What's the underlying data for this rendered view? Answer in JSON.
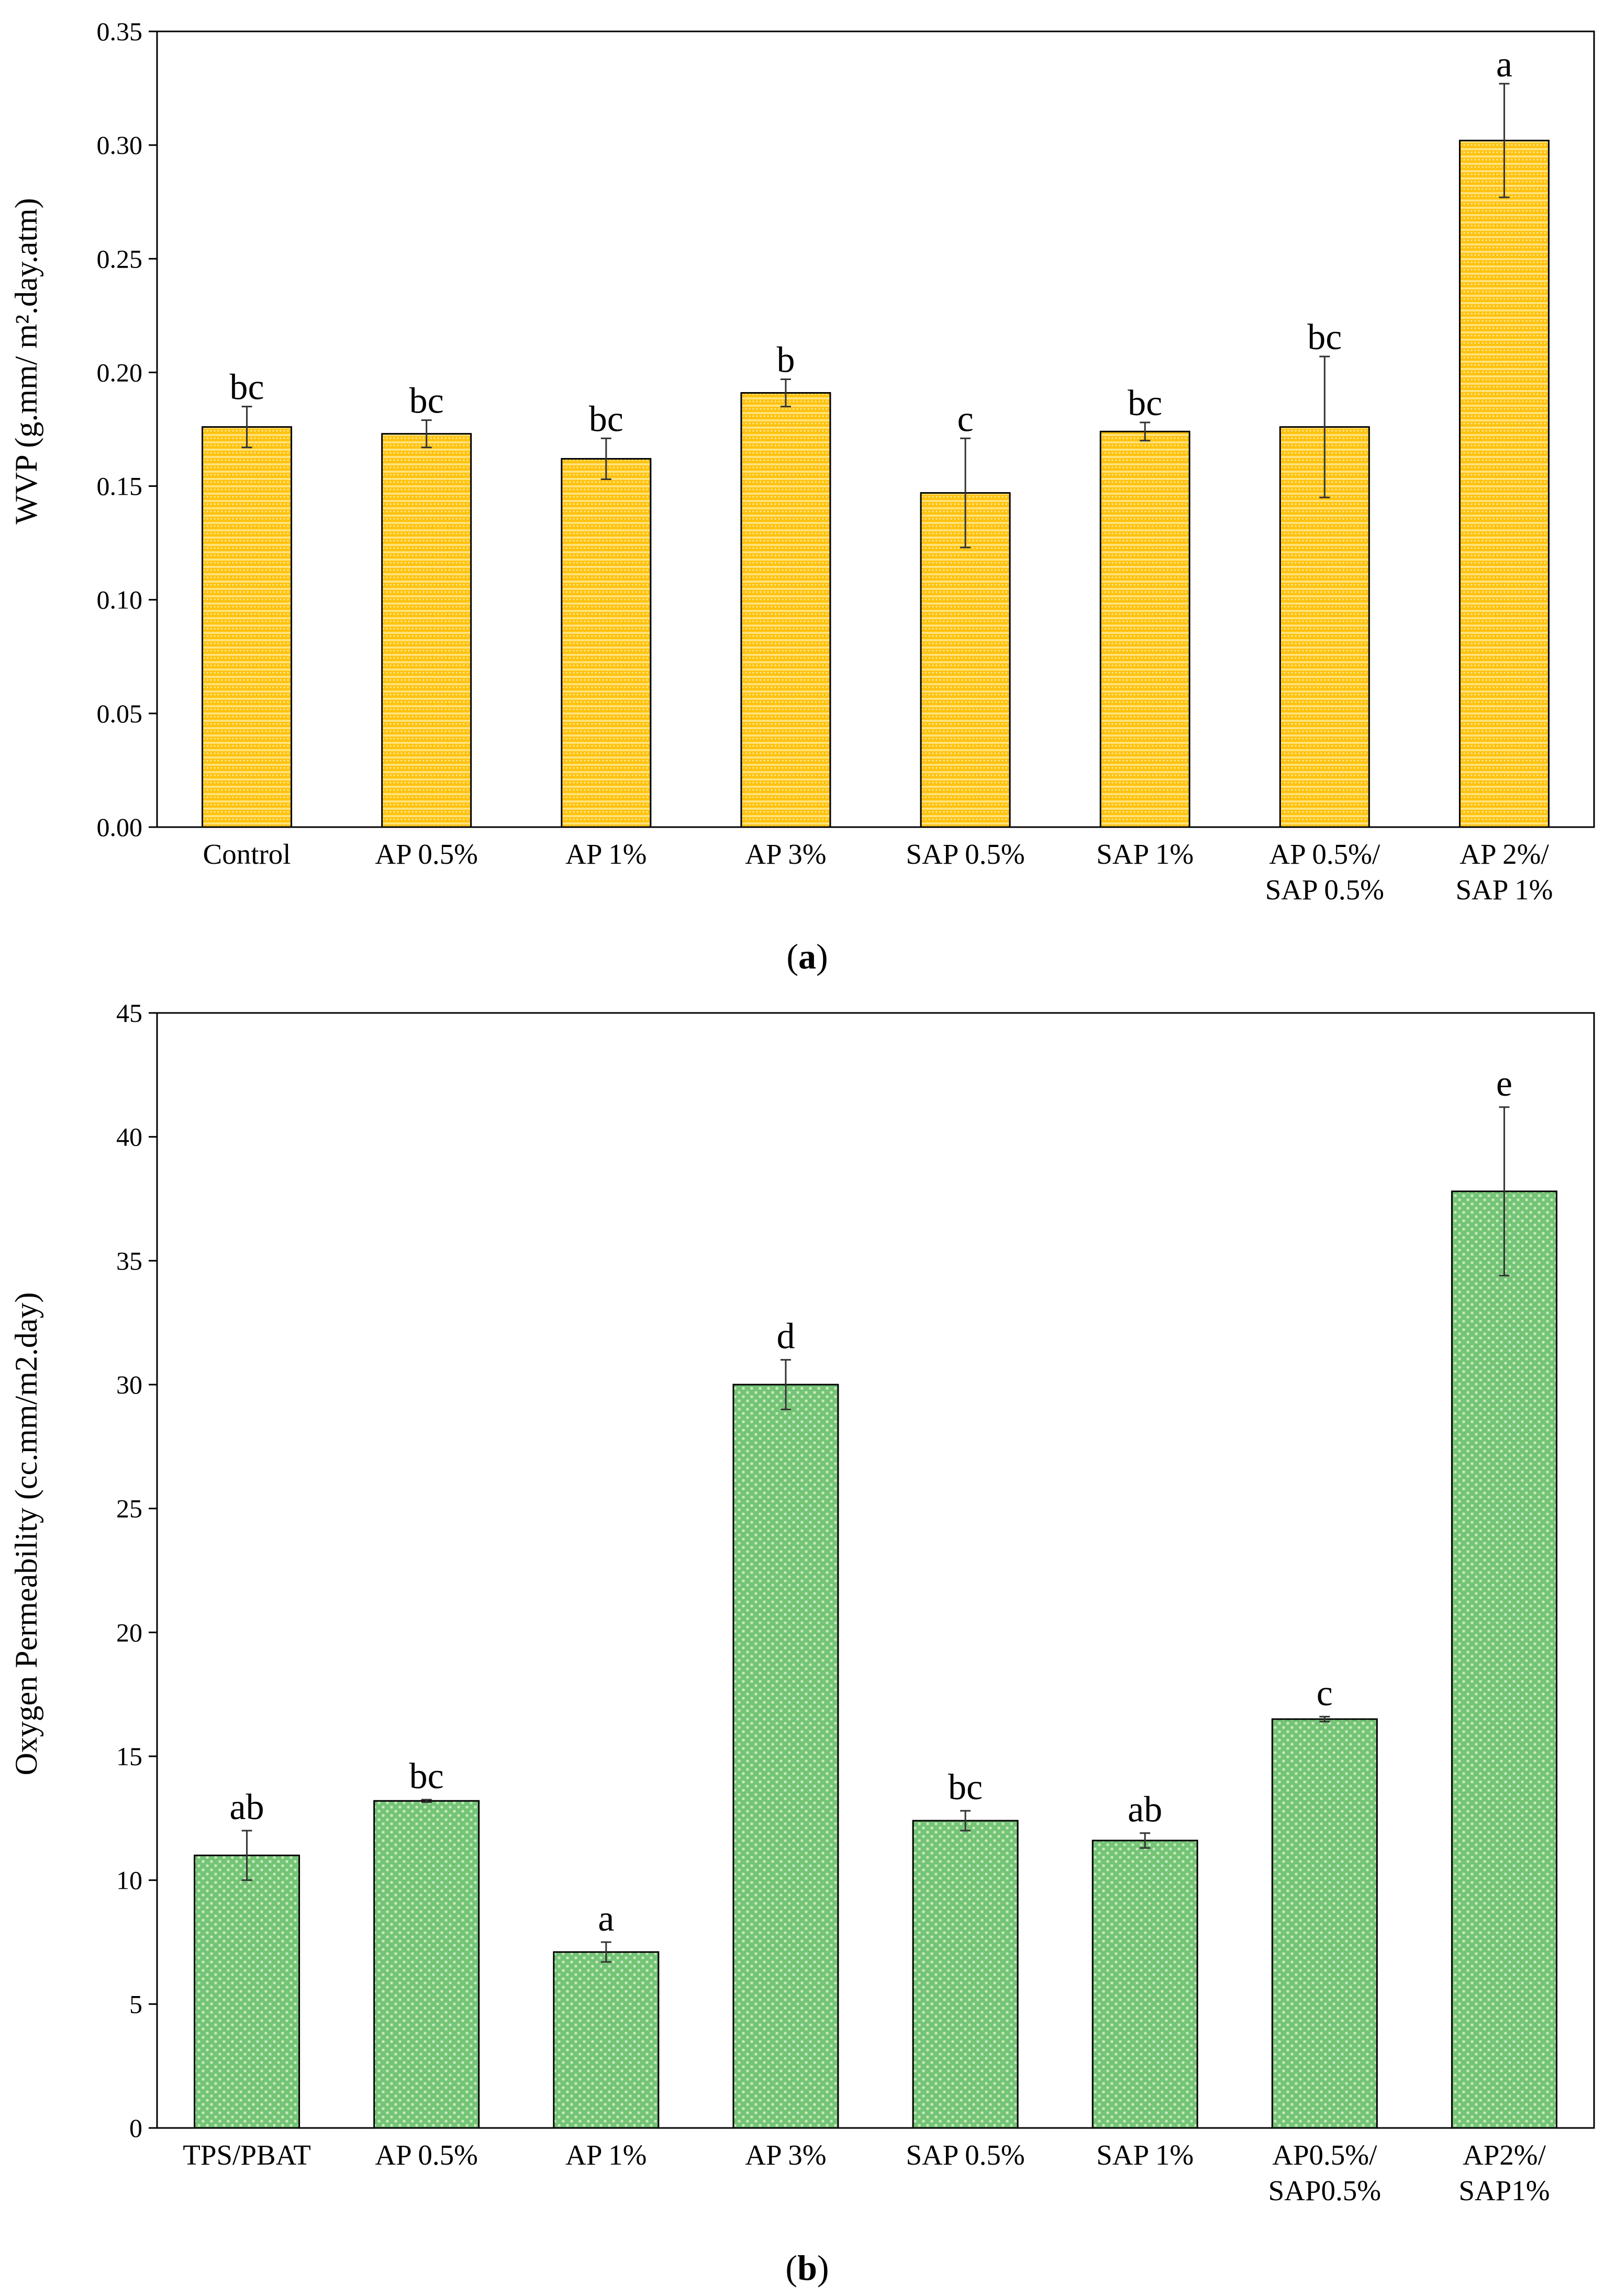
{
  "chart_data": [
    {
      "type": "bar",
      "panel_label": "a",
      "ylabel": "WVP (g.mm/ m².day.atm)",
      "ylim": [
        0,
        0.35
      ],
      "yticks": [
        0.0,
        0.05,
        0.1,
        0.15,
        0.2,
        0.25,
        0.3,
        0.35
      ],
      "ytick_labels": [
        "0.00",
        "0.05",
        "0.10",
        "0.15",
        "0.20",
        "0.25",
        "0.30",
        "0.35"
      ],
      "categories": [
        [
          "Control"
        ],
        [
          "AP 0.5%"
        ],
        [
          "AP 1%"
        ],
        [
          "AP 3%"
        ],
        [
          "SAP 0.5%"
        ],
        [
          "SAP 1%"
        ],
        [
          "AP 0.5%/",
          "SAP 0.5%"
        ],
        [
          "AP 2%/",
          "SAP 1%"
        ]
      ],
      "values": [
        0.176,
        0.173,
        0.162,
        0.191,
        0.147,
        0.174,
        0.176,
        0.302
      ],
      "errors": [
        0.009,
        0.006,
        0.009,
        0.006,
        0.024,
        0.004,
        0.031,
        0.025
      ],
      "significance": [
        "bc",
        "bc",
        "bc",
        "b",
        "c",
        "bc",
        "bc",
        "a"
      ],
      "bar_color": "#FFC20E",
      "bar_pattern_color": "#FFE27A"
    },
    {
      "type": "bar",
      "panel_label": "b",
      "ylabel": "Oxygen Permeability (cc.mm/m2.day)",
      "ylim": [
        0,
        45
      ],
      "yticks": [
        0,
        5,
        10,
        15,
        20,
        25,
        30,
        35,
        40,
        45
      ],
      "ytick_labels": [
        "0",
        "5",
        "10",
        "15",
        "20",
        "25",
        "30",
        "35",
        "40",
        "45"
      ],
      "categories": [
        [
          "TPS/PBAT"
        ],
        [
          "AP 0.5%"
        ],
        [
          "AP 1%"
        ],
        [
          "AP 3%"
        ],
        [
          "SAP 0.5%"
        ],
        [
          "SAP 1%"
        ],
        [
          "AP0.5%/",
          "SAP0.5%"
        ],
        [
          "AP2%/",
          "SAP1%"
        ]
      ],
      "values": [
        11.0,
        13.2,
        7.1,
        30.0,
        12.4,
        11.6,
        16.5,
        37.8
      ],
      "errors": [
        1.0,
        0.05,
        0.4,
        1.0,
        0.4,
        0.3,
        0.1,
        3.4
      ],
      "significance": [
        "ab",
        "bc",
        "a",
        "d",
        "bc",
        "ab",
        "c",
        "e"
      ],
      "bar_color": "#74C476",
      "bar_pattern_color": "#C7E9C0"
    }
  ]
}
